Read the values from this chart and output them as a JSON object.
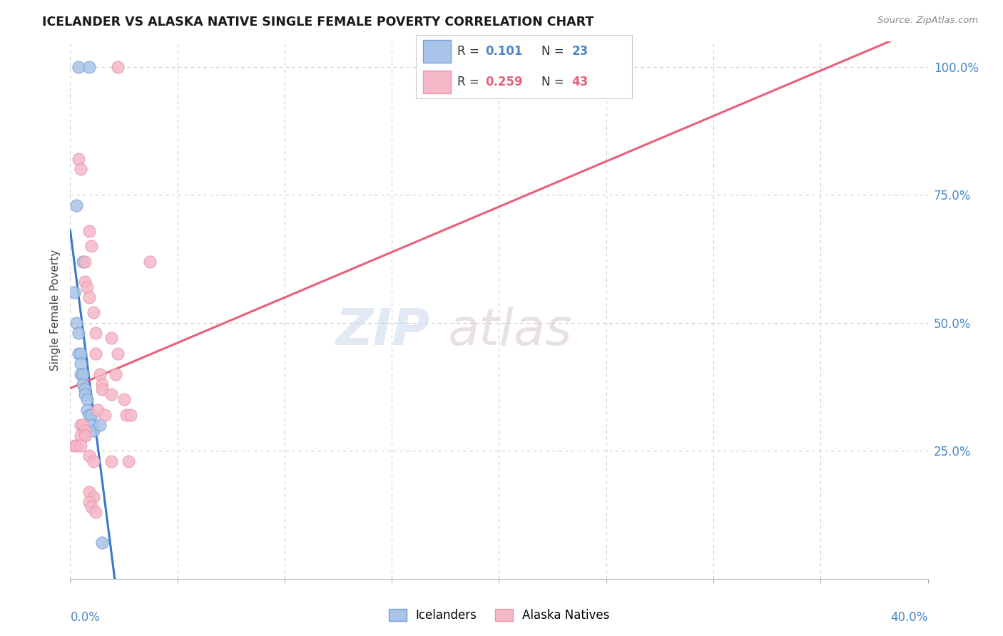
{
  "title": "ICELANDER VS ALASKA NATIVE SINGLE FEMALE POVERTY CORRELATION CHART",
  "source": "Source: ZipAtlas.com",
  "ylabel": "Single Female Poverty",
  "watermark": "ZIPatlas",
  "legend_blue_r": "0.101",
  "legend_blue_n": "23",
  "legend_pink_r": "0.259",
  "legend_pink_n": "43",
  "legend_label_blue": "Icelanders",
  "legend_label_pink": "Alaska Natives",
  "blue_scatter_color": "#a8c4e8",
  "pink_scatter_color": "#f5b8c8",
  "blue_line_color": "#3a78c8",
  "pink_line_color": "#e8607a",
  "blue_dash_color": "#b0c8e0",
  "xlim": [
    0.0,
    0.4
  ],
  "ylim": [
    0.0,
    1.05
  ],
  "xtick_positions": [
    0.0,
    0.05,
    0.1,
    0.15,
    0.2,
    0.25,
    0.3,
    0.35,
    0.4
  ],
  "ytick_positions": [
    0.25,
    0.5,
    0.75,
    1.0
  ],
  "ytick_labels": [
    "25.0%",
    "50.0%",
    "75.0%",
    "100.0%"
  ],
  "icelander_x": [
    0.004,
    0.009,
    0.003,
    0.006,
    0.002,
    0.003,
    0.004,
    0.004,
    0.005,
    0.005,
    0.005,
    0.006,
    0.006,
    0.007,
    0.007,
    0.008,
    0.008,
    0.009,
    0.01,
    0.01,
    0.011,
    0.014,
    0.015
  ],
  "icelander_y": [
    1.0,
    1.0,
    0.73,
    0.62,
    0.56,
    0.5,
    0.48,
    0.44,
    0.44,
    0.42,
    0.4,
    0.4,
    0.38,
    0.37,
    0.36,
    0.35,
    0.33,
    0.32,
    0.32,
    0.3,
    0.29,
    0.3,
    0.07
  ],
  "alaska_x": [
    0.022,
    0.004,
    0.005,
    0.009,
    0.01,
    0.007,
    0.007,
    0.008,
    0.009,
    0.011,
    0.012,
    0.019,
    0.012,
    0.022,
    0.014,
    0.021,
    0.015,
    0.015,
    0.019,
    0.025,
    0.013,
    0.016,
    0.005,
    0.006,
    0.007,
    0.007,
    0.005,
    0.007,
    0.002,
    0.003,
    0.005,
    0.009,
    0.011,
    0.019,
    0.009,
    0.011,
    0.009,
    0.01,
    0.012,
    0.026,
    0.027,
    0.037,
    0.028
  ],
  "alaska_y": [
    1.0,
    0.82,
    0.8,
    0.68,
    0.65,
    0.62,
    0.58,
    0.57,
    0.55,
    0.52,
    0.48,
    0.47,
    0.44,
    0.44,
    0.4,
    0.4,
    0.38,
    0.37,
    0.36,
    0.35,
    0.33,
    0.32,
    0.3,
    0.3,
    0.29,
    0.28,
    0.28,
    0.28,
    0.26,
    0.26,
    0.26,
    0.24,
    0.23,
    0.23,
    0.17,
    0.16,
    0.15,
    0.14,
    0.13,
    0.32,
    0.23,
    0.62,
    0.32
  ],
  "blue_line_xrange": [
    0.0,
    0.175
  ],
  "blue_dash_xrange": [
    0.0,
    0.4
  ],
  "pink_line_xrange": [
    0.0,
    0.4
  ]
}
